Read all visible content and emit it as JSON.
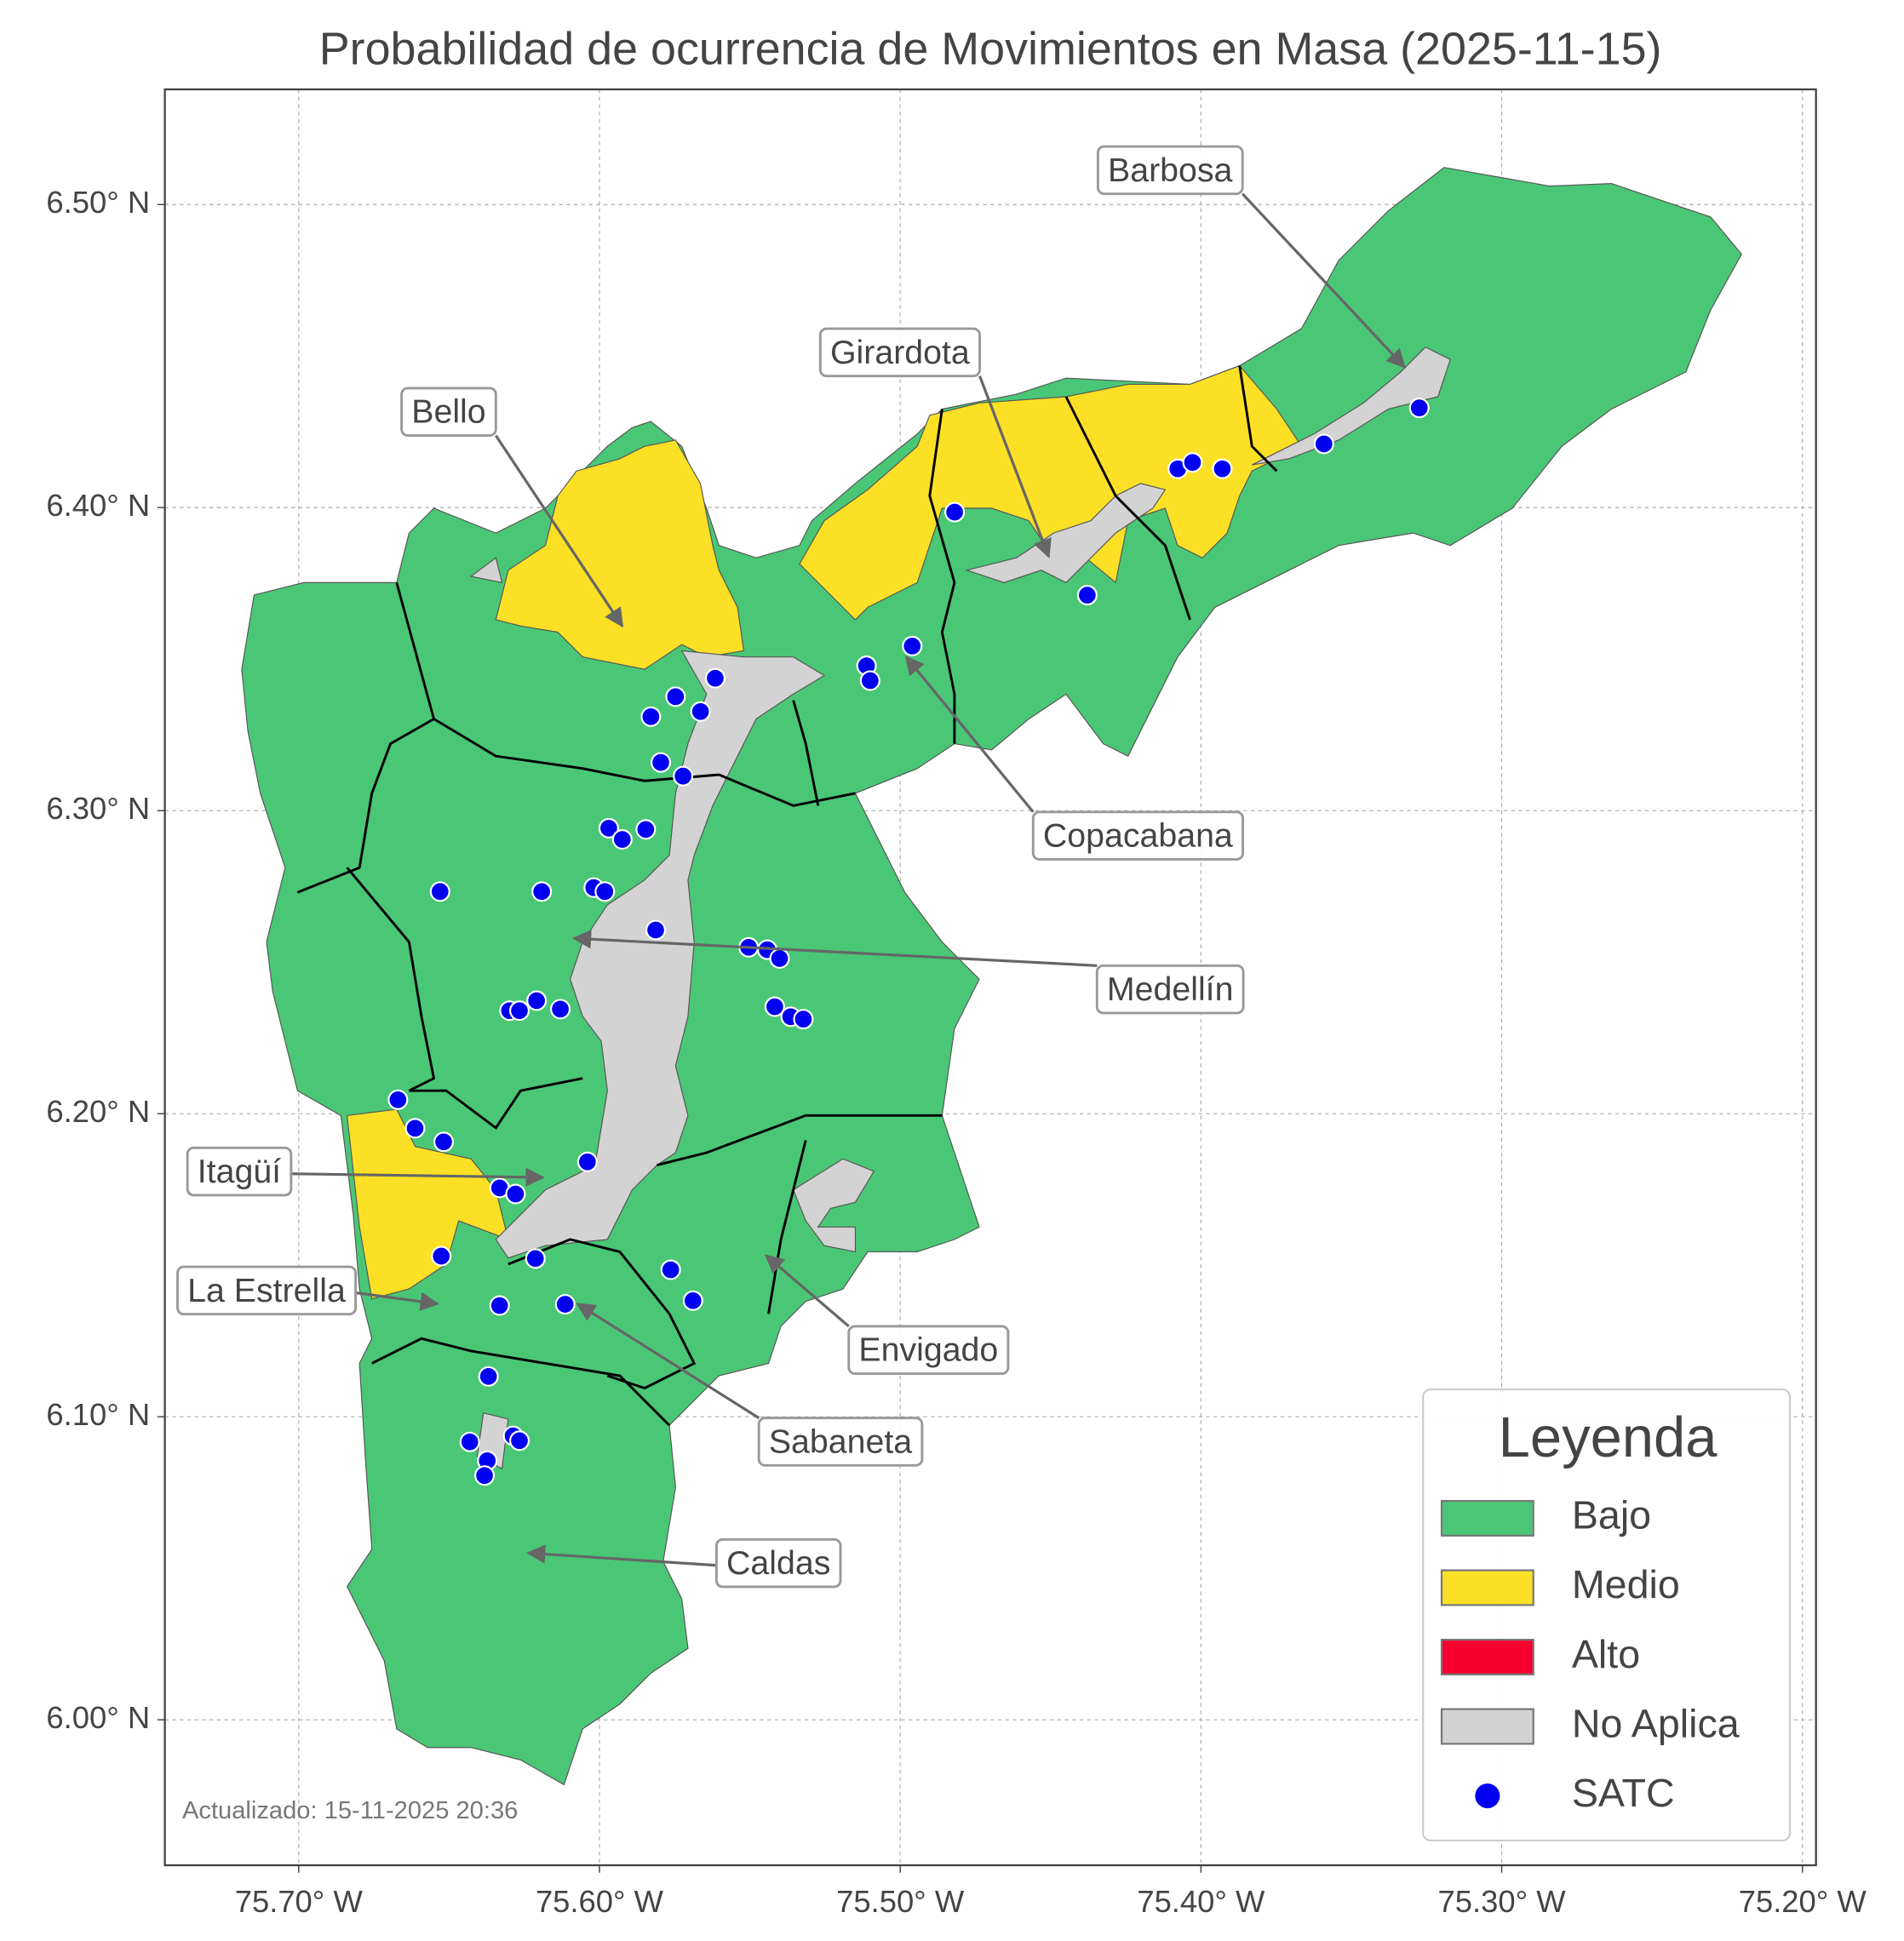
{
  "chart_data": {
    "type": "map",
    "title": "Probabilidad de ocurrencia de Movimientos en Masa (2025-11-15)",
    "xlim": [
      -75.7445,
      -75.1955
    ],
    "ylim": [
      5.952,
      6.538
    ],
    "xticks": [
      {
        "value": -75.7,
        "label": "75.70° W"
      },
      {
        "value": -75.6,
        "label": "75.60° W"
      },
      {
        "value": -75.5,
        "label": "75.50° W"
      },
      {
        "value": -75.4,
        "label": "75.40° W"
      },
      {
        "value": -75.3,
        "label": "75.30° W"
      },
      {
        "value": -75.2,
        "label": "75.20° W"
      }
    ],
    "yticks": [
      {
        "value": 6.0,
        "label": "6.00° N"
      },
      {
        "value": 6.1,
        "label": "6.10° N"
      },
      {
        "value": 6.2,
        "label": "6.20° N"
      },
      {
        "value": 6.3,
        "label": "6.30° N"
      },
      {
        "value": 6.4,
        "label": "6.40° N"
      },
      {
        "value": 6.5,
        "label": "6.50° N"
      }
    ],
    "grid": true,
    "legend": {
      "title": "Leyenda",
      "loc": "lower right"
    },
    "classes": [
      {
        "name": "Bajo",
        "color": "#4ac776"
      },
      {
        "name": "Medio",
        "color": "#fce025"
      },
      {
        "name": "Alto",
        "color": "#f8002e"
      },
      {
        "name": "No Aplica",
        "color": "#d3d3d3"
      }
    ],
    "series": [
      {
        "name": "SATC",
        "color": "#0000f0",
        "x": [
          -75.3274,
          -75.3591,
          -75.4077,
          -75.4028,
          -75.3929,
          -75.4819,
          -75.4378,
          -75.496,
          -75.5112,
          -75.51,
          -75.5615,
          -75.5747,
          -75.5664,
          -75.5829,
          -75.5796,
          -75.5722,
          -75.5969,
          -75.5924,
          -75.5846,
          -75.653,
          -75.6192,
          -75.6019,
          -75.5982,
          -75.5813,
          -75.5504,
          -75.5442,
          -75.5401,
          -75.5417,
          -75.5364,
          -75.5322,
          -75.6209,
          -75.613,
          -75.6299,
          -75.6266,
          -75.667,
          -75.6613,
          -75.6518,
          -75.604,
          -75.6332,
          -75.6279,
          -75.6526,
          -75.6213,
          -75.5763,
          -75.5689,
          -75.6332,
          -75.6114,
          -75.6369,
          -75.6431,
          -75.6373,
          -75.6382,
          -75.6287,
          -75.6266
        ],
        "y": [
          6.4329,
          6.421,
          6.4128,
          6.4149,
          6.4128,
          6.3985,
          6.3711,
          6.3543,
          6.3478,
          6.3429,
          6.3437,
          6.3376,
          6.3327,
          6.331,
          6.3159,
          6.3114,
          6.2942,
          6.2905,
          6.2938,
          6.2733,
          6.2733,
          6.2746,
          6.2733,
          6.2606,
          6.2549,
          6.2541,
          6.2512,
          6.2353,
          6.232,
          6.2312,
          6.2373,
          6.2345,
          6.234,
          6.234,
          6.2046,
          6.1952,
          6.1907,
          6.1841,
          6.1755,
          6.1735,
          6.153,
          6.1522,
          6.1485,
          6.1383,
          6.1367,
          6.1371,
          6.1133,
          6.0917,
          6.0855,
          6.0806,
          6.0937,
          6.0921
        ]
      }
    ],
    "annotations": [
      "Barbosa",
      "Girardota",
      "Bello",
      "Copacabana",
      "Medellín",
      "Itagüí",
      "La Estrella",
      "Envigado",
      "Sabaneta",
      "Caldas"
    ],
    "footnote": "Actualizado: 15-11-2025 20:36"
  }
}
